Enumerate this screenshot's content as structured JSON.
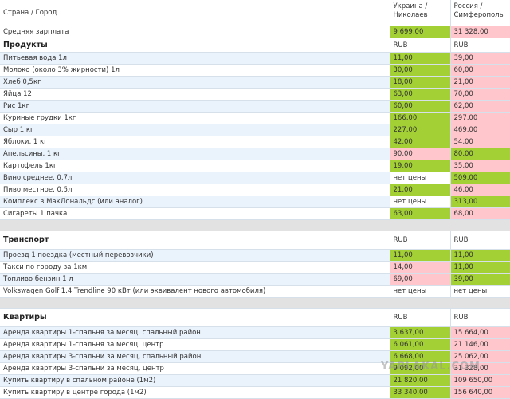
{
  "header": {
    "label": "Страна / Город",
    "col1": "Украина / Николаев",
    "col2": "Россия / Симферополь"
  },
  "salary": {
    "label": "Средняя зарплата",
    "v1": "9 699,00",
    "v2": "31 328,00"
  },
  "sections": [
    {
      "title": "Продукты",
      "unit1": "RUB",
      "unit2": "RUB",
      "rows": [
        {
          "label": "Питьевая вода 1л",
          "v1": "11,00",
          "v2": "39,00"
        },
        {
          "label": "Молоко (около 3% жирности) 1л",
          "v1": "30,00",
          "v2": "60,00"
        },
        {
          "label": "Хлеб 0,5кг",
          "v1": "18,00",
          "v2": "21,00"
        },
        {
          "label": "Яйца 12",
          "v1": "63,00",
          "v2": "70,00"
        },
        {
          "label": "Рис 1кг",
          "v1": "60,00",
          "v2": "62,00"
        },
        {
          "label": "Куриные грудки 1кг",
          "v1": "166,00",
          "v2": "297,00"
        },
        {
          "label": "Сыр 1 кг",
          "v1": "227,00",
          "v2": "469,00"
        },
        {
          "label": "Яблоки, 1 кг",
          "v1": "42,00",
          "v2": "54,00"
        },
        {
          "label": "Апельсины, 1 кг",
          "v1": "90,00",
          "v2": "80,00"
        },
        {
          "label": "Картофель 1кг",
          "v1": "19,00",
          "v2": "35,00"
        },
        {
          "label": "Вино среднее, 0,7л",
          "v1": "нет цены",
          "v2": "509,00"
        },
        {
          "label": "Пиво местное, 0,5л",
          "v1": "21,00",
          "v2": "46,00"
        },
        {
          "label": "Комплекс в МакДональдс (или аналог)",
          "v1": "нет цены",
          "v2": "313,00"
        },
        {
          "label": "Сигареты 1 пачка",
          "v1": "63,00",
          "v2": "68,00"
        }
      ]
    },
    {
      "title": "Транспорт",
      "unit1": "RUB",
      "unit2": "RUB",
      "rows": [
        {
          "label": "Проезд 1 поездка (местный перевозчики)",
          "v1": "11,00",
          "v2": "11,00"
        },
        {
          "label": "Такси по городу за 1км",
          "v1": "14,00",
          "v2": "11,00"
        },
        {
          "label": "Топливо бензин 1 л",
          "v1": "69,00",
          "v2": "39,00"
        },
        {
          "label": "Volkswagen Golf 1.4 Trendline 90 кВт (или эквивалент нового автомобиля)",
          "v1": "нет цены",
          "v2": "нет цены"
        }
      ]
    },
    {
      "title": "Квартиры",
      "unit1": "RUB",
      "unit2": "RUB",
      "rows": [
        {
          "label": "Аренда квартиры 1-спальня за месяц, спальный район",
          "v1": "3 637,00",
          "v2": "15 664,00"
        },
        {
          "label": "Аренда квартиры 1-спальня за месяц, центр",
          "v1": "6 061,00",
          "v2": "21 146,00"
        },
        {
          "label": "Аренда квартиры 3-спальни за месяц, спальный район",
          "v1": "6 668,00",
          "v2": "25 062,00"
        },
        {
          "label": "Аренда квартиры 3-спальни за месяц, центр",
          "v1": "9 092,00",
          "v2": "31 328,00"
        },
        {
          "label": "Купить квартиру в спальном районе (1м2)",
          "v1": "21 820,00",
          "v2": "109 650,00"
        },
        {
          "label": "Купить квартиру в центре города (1м2)",
          "v1": "33 340,00",
          "v2": "156 640,00"
        }
      ]
    }
  ],
  "colors": {
    "cheaper": "#a3d135",
    "pricier": "#ffc7cc"
  },
  "watermark": "YAPLAKAL.COM"
}
